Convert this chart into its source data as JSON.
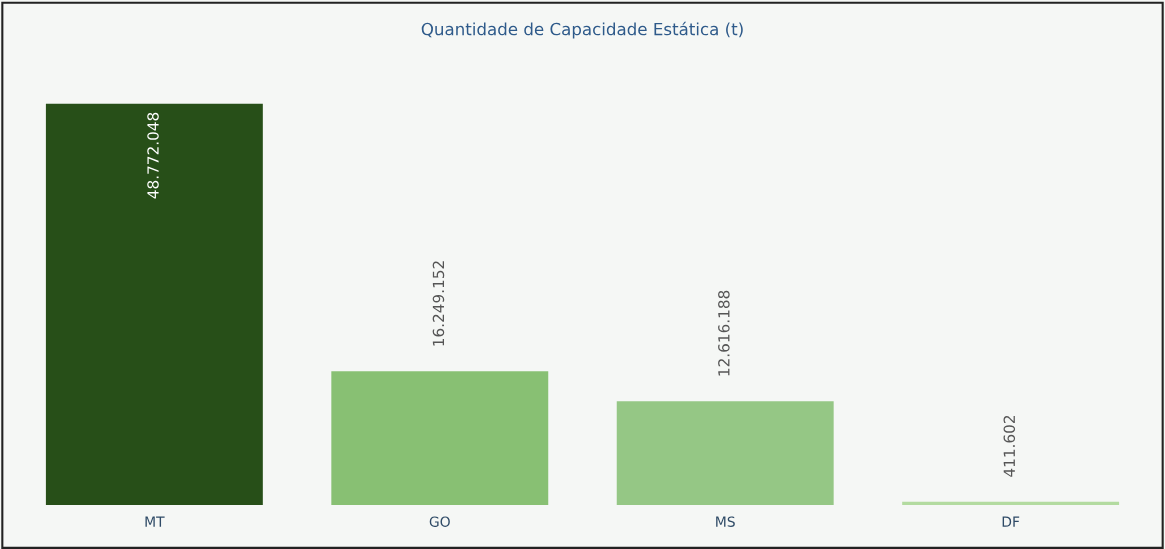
{
  "chart_data": {
    "type": "bar",
    "title": "Quantidade de Capacidade Estática (t)",
    "categories": [
      "MT",
      "GO",
      "MS",
      "DF"
    ],
    "values": [
      48772048,
      16249152,
      12616188,
      411602
    ],
    "colors": [
      "#274f18",
      "#88c073",
      "#95c785",
      "#b3dba0"
    ],
    "value_labels": [
      "48.772.048",
      "16.249.152",
      "12.616.188",
      "411.602"
    ],
    "grid": false,
    "legend": false
  }
}
